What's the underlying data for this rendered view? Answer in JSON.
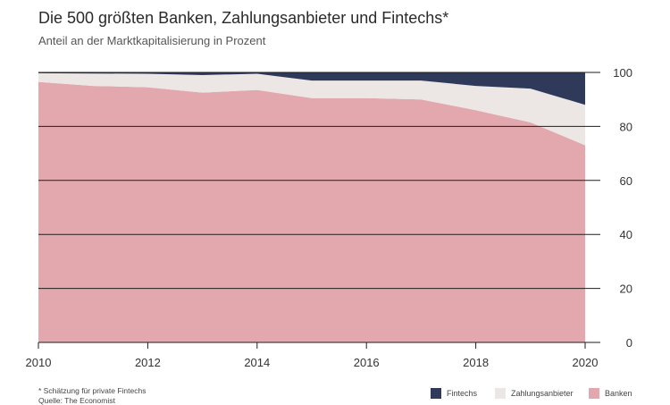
{
  "header": {
    "title": "Die 500 größten Banken, Zahlungsanbieter und Fintechs*",
    "subtitle": "Anteil an der Marktkapitalisierung in Prozent"
  },
  "footnotes": {
    "note": "* Schätzung für private Fintechs",
    "source": "Quelle: The Economist"
  },
  "legend": [
    {
      "label": "Fintechs",
      "color": "#2f3a5a"
    },
    {
      "label": "Zahlungsanbieter",
      "color": "#ece6e4"
    },
    {
      "label": "Banken",
      "color": "#e3a8ad"
    }
  ],
  "chart_data": {
    "type": "area",
    "stacked": true,
    "x": [
      2010,
      2011,
      2012,
      2013,
      2014,
      2015,
      2016,
      2017,
      2018,
      2019,
      2020
    ],
    "x_ticks": [
      "2010",
      "2012",
      "2014",
      "2016",
      "2018",
      "2020"
    ],
    "y_ticks": [
      "0",
      "20",
      "40",
      "60",
      "80",
      "100"
    ],
    "xlim": [
      2010,
      2020
    ],
    "ylim": [
      0,
      100
    ],
    "y_axis_side": "right",
    "grid": "horizontal",
    "legend_position": "bottom-right",
    "series": [
      {
        "name": "Banken",
        "color": "#e3a8ad",
        "values": [
          96.5,
          95,
          94.5,
          92.5,
          93.5,
          90.5,
          90.5,
          90,
          86,
          81.5,
          73
        ]
      },
      {
        "name": "Zahlungsanbieter",
        "color": "#ece6e4",
        "values": [
          3.2,
          4.6,
          5.0,
          6.5,
          6.0,
          6.5,
          6.5,
          7.0,
          9.0,
          12.5,
          15.0
        ]
      },
      {
        "name": "Fintechs",
        "color": "#2f3a5a",
        "values": [
          0.3,
          0.4,
          0.5,
          1.0,
          0.5,
          3.0,
          3.0,
          3.0,
          5.0,
          6.0,
          12.0
        ]
      }
    ]
  }
}
